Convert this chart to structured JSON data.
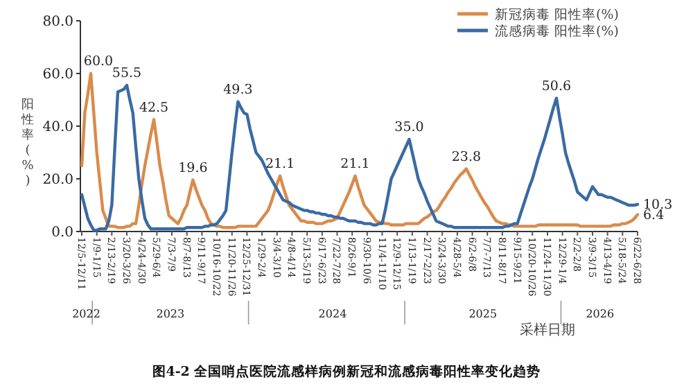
{
  "chart_data": {
    "type": "line",
    "title": "图4-2 全国哨点医院流感样病例新冠和流感病毒阳性率变化趋势",
    "xlabel": "采样日期",
    "ylabel": "阳性率(%)",
    "legend": "top right",
    "annotations": [
      "2022",
      "2023",
      "2024",
      "2025",
      "2026"
    ],
    "ylim": [
      0,
      80
    ],
    "yticks": [
      {
        "value": 0,
        "label": "0.0"
      },
      {
        "value": 20,
        "label": "20.0"
      },
      {
        "value": 40,
        "label": "40.0"
      },
      {
        "value": 60,
        "label": "60.0"
      },
      {
        "value": 80,
        "label": "80.0"
      }
    ],
    "categories": [
      "12/5-12/11",
      null,
      null,
      null,
      null,
      "1/9-1/15",
      null,
      null,
      null,
      null,
      "2/13-2/19",
      null,
      null,
      null,
      null,
      "3/20-3/26",
      null,
      null,
      null,
      null,
      "4/24-4/30",
      null,
      null,
      null,
      null,
      "5/29-6/4",
      null,
      null,
      null,
      null,
      "7/3-7/9",
      null,
      null,
      null,
      null,
      "8/7-8/13",
      null,
      null,
      null,
      null,
      "9/11-9/17",
      null,
      null,
      null,
      null,
      "10/16-10/22",
      null,
      null,
      null,
      null,
      "11/20-11/26",
      null,
      null,
      null,
      null,
      "12/25-12/31",
      null,
      null,
      null,
      null,
      "1/29-2/4",
      null,
      null,
      null,
      null,
      "3/4-3/10",
      null,
      null,
      null,
      null,
      "4/8-4/14",
      null,
      null,
      null,
      null,
      "5/13-5/19",
      null,
      null,
      null,
      null,
      "6/17-6/23",
      null,
      null,
      null,
      null,
      "7/22-7/28",
      null,
      null,
      null,
      null,
      "8/26-9/1",
      null,
      null,
      null,
      null,
      "9/30-10/6",
      null,
      null,
      null,
      null,
      "11/4-11/10",
      null,
      null,
      null,
      null,
      "12/9-12/15",
      null,
      null,
      null,
      null,
      "1/13-1/19",
      null,
      null,
      null,
      null,
      "2/17-2/23",
      null,
      null,
      null,
      null,
      "3/24-3/30",
      null,
      null,
      null,
      null,
      "4/28-5/4",
      null,
      null,
      null,
      null,
      "6/2-6/8",
      null,
      null,
      null,
      null,
      "7/7-7/13",
      null,
      null,
      null,
      null,
      "8/11-8/17",
      null,
      null,
      null,
      null,
      "9/15-9/21",
      null,
      null,
      null,
      null,
      "10/20-10/26",
      null,
      null,
      null,
      null,
      "11/24-11/30",
      null,
      null,
      null,
      null,
      "12/29-1/4",
      null,
      null,
      null,
      null,
      "2/2-2/8",
      null,
      null,
      null,
      null,
      "3/9-3/15",
      null,
      null,
      null,
      null,
      "4/13-4/19",
      null,
      null,
      null,
      null,
      "5/18-5/24",
      null,
      null,
      null,
      null,
      "6/22-6/28"
    ],
    "series": [
      {
        "name": "新冠病毒 阳性率(%)",
        "color": "#d98b4b",
        "values": [
          25,
          45,
          52,
          60.0,
          45,
          30,
          19,
          8,
          5,
          2,
          2,
          2,
          1.5,
          1.5,
          1.5,
          2,
          2,
          3,
          3,
          10,
          18,
          25,
          31,
          37,
          42.5,
          34,
          25,
          19,
          12,
          6,
          5,
          4,
          3,
          5,
          8,
          10,
          15,
          19.6,
          16,
          13,
          10,
          8,
          5,
          3,
          2.5,
          2,
          2,
          1.5,
          1.5,
          1.5,
          1.5,
          1.5,
          2,
          2,
          2,
          2,
          2,
          2,
          2,
          3.5,
          5,
          6.5,
          8,
          11,
          14.5,
          18,
          21.1,
          17,
          13.5,
          10,
          8.5,
          7,
          5.5,
          4,
          4,
          3.5,
          3.5,
          3.5,
          3,
          3,
          3,
          3.5,
          4,
          4,
          4.5,
          5,
          7.5,
          10,
          12.5,
          15,
          18,
          21.1,
          17,
          13.5,
          10,
          8.5,
          7,
          5.5,
          4,
          3.5,
          3.5,
          3,
          3,
          2.5,
          2.5,
          2.5,
          2.5,
          2.5,
          3,
          3,
          3,
          3,
          3,
          4,
          5,
          5.5,
          6.5,
          7.5,
          8,
          9.5,
          11.5,
          13,
          15,
          16.5,
          18.5,
          20,
          21.5,
          22.5,
          23.8,
          21.5,
          19.5,
          17,
          15,
          13,
          11,
          9.5,
          7.5,
          5.5,
          4,
          3.5,
          3,
          3,
          2.5,
          2.5,
          2,
          2,
          2,
          2,
          2,
          2,
          2,
          2,
          2.5,
          2.5,
          2.5,
          2.5,
          2.5,
          2.5,
          2.5,
          2.5,
          2.5,
          2.5,
          2.5,
          2.5,
          2.5,
          2.5,
          2,
          2,
          2,
          2,
          2,
          2,
          2,
          2,
          2,
          2,
          2,
          2.5,
          2.5,
          2.5,
          3,
          3,
          3.5,
          4,
          5,
          6.4
        ],
        "value_labels": [
          null,
          null,
          null,
          "60.0",
          null,
          null,
          null,
          null,
          null,
          null,
          null,
          null,
          null,
          null,
          null,
          null,
          null,
          null,
          null,
          null,
          null,
          null,
          null,
          null,
          "42.5",
          null,
          null,
          null,
          null,
          null,
          null,
          null,
          null,
          null,
          null,
          null,
          null,
          "19.6",
          null,
          null,
          null,
          null,
          null,
          null,
          null,
          null,
          null,
          null,
          null,
          null,
          null,
          null,
          null,
          null,
          null,
          null,
          null,
          null,
          null,
          null,
          null,
          null,
          null,
          null,
          null,
          null,
          "21.1",
          null,
          null,
          null,
          null,
          null,
          null,
          null,
          null,
          null,
          null,
          null,
          null,
          null,
          null,
          null,
          null,
          null,
          null,
          null,
          null,
          null,
          null,
          null,
          null,
          "21.1",
          null,
          null,
          null,
          null,
          null,
          null,
          null,
          null,
          null,
          null,
          null,
          null,
          null,
          null,
          null,
          null,
          null,
          null,
          null,
          null,
          null,
          null,
          null,
          null,
          null,
          null,
          null,
          null,
          null,
          null,
          null,
          null,
          null,
          null,
          null,
          null,
          "23.8",
          null,
          null,
          null,
          null,
          null,
          null,
          null,
          null,
          null,
          null,
          null,
          null,
          null,
          null,
          null,
          null,
          null,
          null,
          null,
          null,
          null,
          null,
          null,
          null,
          null,
          null,
          null,
          null,
          null,
          null,
          null,
          null,
          null,
          null,
          null,
          null,
          null,
          null,
          null,
          null,
          null,
          null,
          null,
          null,
          null,
          null,
          null,
          null,
          null,
          null,
          null,
          null,
          null,
          null,
          null,
          null,
          "6.4"
        ]
      },
      {
        "name": "流感病毒 阳性率(%)",
        "color": "#3a6aa3",
        "values": [
          14,
          9.5,
          5,
          2.5,
          0.5,
          0.5,
          1,
          1,
          1,
          4,
          10,
          32,
          53,
          53.5,
          54,
          55.5,
          50,
          45,
          32,
          20,
          12,
          5,
          2.5,
          1,
          1,
          1,
          1,
          1,
          1,
          1,
          1,
          1,
          1,
          1,
          1,
          1.5,
          1.5,
          1.5,
          1.5,
          1.5,
          1.5,
          2,
          2,
          2.5,
          2.5,
          3,
          4.5,
          6,
          8,
          19,
          30,
          40,
          49.3,
          47,
          45,
          44.5,
          39,
          34.5,
          30,
          28.5,
          27,
          24.5,
          22,
          20,
          18,
          16,
          14,
          12,
          11.5,
          11,
          10,
          9.5,
          9,
          8.5,
          8,
          8,
          7.5,
          7.5,
          7,
          7,
          6.5,
          6.5,
          6,
          6,
          5.5,
          5.5,
          5,
          5,
          4.5,
          4,
          4,
          4,
          3.5,
          3.5,
          3,
          3,
          3,
          2.5,
          2.5,
          3,
          3,
          8,
          14,
          20,
          22.5,
          25,
          27.5,
          30,
          32.5,
          35.0,
          30,
          25,
          20,
          17,
          14.5,
          11.5,
          9,
          6.5,
          4,
          3.5,
          3,
          2.5,
          2,
          2,
          1.5,
          1.5,
          1.5,
          1.5,
          1.5,
          1.5,
          1.5,
          1.5,
          1.5,
          1.5,
          1.5,
          1.5,
          1.5,
          1.5,
          1.5,
          1.5,
          1.5,
          2,
          2,
          2.5,
          3,
          3,
          6.5,
          10,
          13.5,
          17,
          20,
          24,
          28,
          31.5,
          35,
          39,
          43,
          47,
          50.6,
          43.5,
          37,
          30,
          26,
          22.5,
          19,
          15,
          14,
          13,
          12,
          14.5,
          17,
          15.5,
          14,
          14,
          13.5,
          13,
          13,
          12.5,
          12,
          11.5,
          11,
          10.5,
          10,
          10,
          10,
          10.3
        ],
        "value_labels": [
          null,
          null,
          null,
          null,
          null,
          null,
          null,
          null,
          null,
          null,
          null,
          null,
          null,
          null,
          null,
          "55.5",
          null,
          null,
          null,
          null,
          null,
          null,
          null,
          null,
          null,
          null,
          null,
          null,
          null,
          null,
          null,
          null,
          null,
          null,
          null,
          null,
          null,
          null,
          null,
          null,
          null,
          null,
          null,
          null,
          null,
          null,
          null,
          null,
          null,
          null,
          null,
          null,
          "49.3",
          null,
          null,
          null,
          null,
          null,
          null,
          null,
          null,
          null,
          null,
          null,
          null,
          null,
          null,
          null,
          null,
          null,
          null,
          null,
          null,
          null,
          null,
          null,
          null,
          null,
          null,
          null,
          null,
          null,
          null,
          null,
          null,
          null,
          null,
          null,
          null,
          null,
          null,
          null,
          null,
          null,
          null,
          null,
          null,
          null,
          null,
          null,
          null,
          null,
          null,
          null,
          null,
          null,
          null,
          null,
          null,
          "35.0",
          null,
          null,
          null,
          null,
          null,
          null,
          null,
          null,
          null,
          null,
          null,
          null,
          null,
          null,
          null,
          null,
          null,
          null,
          null,
          null,
          null,
          null,
          null,
          null,
          null,
          null,
          null,
          null,
          null,
          null,
          null,
          null,
          null,
          null,
          null,
          null,
          null,
          null,
          null,
          null,
          null,
          null,
          null,
          null,
          null,
          null,
          null,
          null,
          "50.6",
          null,
          null,
          null,
          null,
          null,
          null,
          null,
          null,
          null,
          null,
          null,
          null,
          null,
          null,
          null,
          null,
          null,
          null,
          null,
          null,
          null,
          null,
          null,
          null,
          null,
          null,
          "10.3"
        ]
      }
    ]
  }
}
